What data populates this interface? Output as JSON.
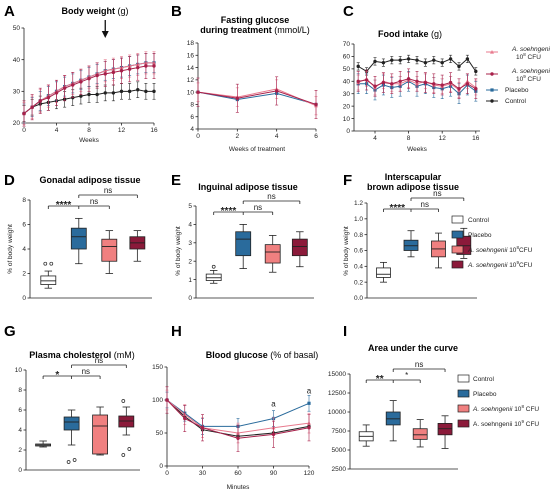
{
  "colors": {
    "control": "#222222",
    "placebo": "#2a6b9c",
    "s8": "#f08080",
    "s9": "#8b1a3a",
    "s8_line": "#e87a8e",
    "s9_line": "#a8204a"
  },
  "chart_data": [
    {
      "panel": "A",
      "type": "line",
      "title": "Body weight",
      "unit": "(g)",
      "xlabel": "Weeks",
      "ylim": [
        20,
        50
      ],
      "yticks": [
        20,
        30,
        40,
        50
      ],
      "xticks": [
        0,
        4,
        8,
        12,
        16
      ],
      "annotation": "arrow at week 10",
      "x": [
        0,
        1,
        2,
        3,
        4,
        5,
        6,
        7,
        8,
        9,
        10,
        11,
        12,
        13,
        14,
        15,
        16
      ],
      "series": [
        {
          "key": "control",
          "values": [
            23,
            25,
            26,
            26.5,
            27,
            27.5,
            28,
            28.5,
            29,
            29,
            29.5,
            29.5,
            30,
            30,
            30.5,
            30,
            30
          ]
        },
        {
          "key": "placebo",
          "values": [
            23,
            25,
            27,
            28.5,
            30,
            31.5,
            32.5,
            33.5,
            34.5,
            35.5,
            36.5,
            37,
            37.5,
            38,
            38.5,
            39,
            39
          ]
        },
        {
          "key": "s8",
          "values": [
            23,
            25,
            27,
            28.5,
            30,
            31.5,
            32.5,
            33.5,
            34.5,
            35.5,
            36.5,
            37,
            37.5,
            38,
            38.5,
            39,
            39
          ]
        },
        {
          "key": "s9",
          "values": [
            23,
            25,
            27,
            28,
            29.5,
            31,
            32,
            33,
            34,
            35,
            35.5,
            36,
            36.5,
            37,
            37.5,
            38,
            38
          ]
        }
      ]
    },
    {
      "panel": "B",
      "type": "line",
      "title": "Fasting glucose during treatment",
      "unit": "(mmol/L)",
      "xlabel": "Weeks of treatment",
      "ylim": [
        4,
        18
      ],
      "yticks": [
        4,
        6,
        8,
        10,
        12,
        14,
        16,
        18
      ],
      "xticks": [
        0,
        2,
        4,
        6
      ],
      "x": [
        0,
        2,
        4,
        6
      ],
      "series": [
        {
          "key": "placebo",
          "values": [
            10,
            8.8,
            9.8,
            8
          ]
        },
        {
          "key": "s8",
          "values": [
            10,
            9.2,
            10.5,
            7.8
          ]
        },
        {
          "key": "s9",
          "values": [
            10,
            9,
            10.2,
            8
          ]
        }
      ]
    },
    {
      "panel": "C",
      "type": "line",
      "title": "Food intake",
      "unit": "(g)",
      "xlabel": "Weeks",
      "ylim": [
        0,
        70
      ],
      "yticks": [
        0,
        10,
        20,
        30,
        40,
        50,
        60,
        70
      ],
      "xticks": [
        4,
        8,
        12,
        16
      ],
      "x": [
        2,
        3,
        4,
        5,
        6,
        7,
        8,
        9,
        10,
        11,
        12,
        13,
        14,
        15,
        16
      ],
      "series": [
        {
          "key": "control",
          "values": [
            52,
            48,
            56,
            55,
            57,
            57,
            58,
            57,
            55,
            57,
            55,
            58,
            52,
            58,
            48
          ]
        },
        {
          "key": "placebo",
          "values": [
            38,
            38,
            33,
            37,
            35,
            36,
            40,
            36,
            38,
            35,
            34,
            36,
            30,
            37,
            32
          ]
        },
        {
          "key": "s8",
          "values": [
            39,
            42,
            35,
            40,
            38,
            38,
            41,
            38,
            40,
            37,
            36,
            38,
            33,
            40,
            35
          ]
        },
        {
          "key": "s9",
          "values": [
            40,
            41,
            36,
            39,
            38,
            40,
            42,
            40,
            39,
            38,
            37,
            39,
            34,
            38,
            34
          ]
        }
      ]
    },
    {
      "panel": "D",
      "type": "box",
      "title": "Gonadal adipose tissue",
      "ylabel": "% of body weight",
      "ylim": [
        0,
        8
      ],
      "yticks": [
        0,
        2,
        4,
        6,
        8
      ],
      "boxes": [
        {
          "key": "control",
          "min": 0.8,
          "q1": 1.1,
          "med": 1.4,
          "q3": 1.8,
          "max": 2.2,
          "outliers": [
            2.8,
            2.8
          ]
        },
        {
          "key": "placebo",
          "min": 2.8,
          "q1": 4.0,
          "med": 5.0,
          "q3": 5.7,
          "max": 6.5
        },
        {
          "key": "s8",
          "min": 2.0,
          "q1": 3.0,
          "med": 4.2,
          "q3": 4.8,
          "max": 5.5
        },
        {
          "key": "s9",
          "min": 3.0,
          "q1": 4.0,
          "med": 4.5,
          "q3": 5.0,
          "max": 5.5
        }
      ],
      "sig": [
        "****",
        "ns",
        "ns"
      ]
    },
    {
      "panel": "E",
      "type": "box",
      "title": "Inguinal adipose tissue",
      "ylabel": "% of body weight",
      "ylim": [
        0,
        5
      ],
      "yticks": [
        0,
        1,
        2,
        3,
        4,
        5
      ],
      "boxes": [
        {
          "key": "control",
          "min": 0.8,
          "q1": 0.95,
          "med": 1.1,
          "q3": 1.3,
          "max": 1.5,
          "outliers": [
            1.7
          ]
        },
        {
          "key": "placebo",
          "min": 1.6,
          "q1": 2.3,
          "med": 3.2,
          "q3": 3.6,
          "max": 4.0
        },
        {
          "key": "s8",
          "min": 1.4,
          "q1": 1.9,
          "med": 2.5,
          "q3": 2.9,
          "max": 3.4
        },
        {
          "key": "s9",
          "min": 1.7,
          "q1": 2.3,
          "med": 2.8,
          "q3": 3.2,
          "max": 3.6
        }
      ],
      "sig": [
        "****",
        "ns",
        "ns"
      ]
    },
    {
      "panel": "F",
      "type": "box",
      "title": "Interscapular brown adipose tissue",
      "ylabel": "% of body weight",
      "ylim": [
        0,
        1.2
      ],
      "yticks": [
        "0.0",
        "0.2",
        "0.4",
        "0.6",
        "0.8",
        "1.0",
        "1.2"
      ],
      "boxes": [
        {
          "key": "control",
          "min": 0.2,
          "q1": 0.26,
          "med": 0.3,
          "q3": 0.38,
          "max": 0.45
        },
        {
          "key": "placebo",
          "min": 0.52,
          "q1": 0.6,
          "med": 0.66,
          "q3": 0.73,
          "max": 0.85
        },
        {
          "key": "s8",
          "min": 0.38,
          "q1": 0.52,
          "med": 0.62,
          "q3": 0.72,
          "max": 0.82
        },
        {
          "key": "s9",
          "min": 0.5,
          "q1": 0.55,
          "med": 0.66,
          "q3": 0.78,
          "max": 0.88
        }
      ],
      "sig": [
        "****",
        "ns",
        "ns"
      ]
    },
    {
      "panel": "G",
      "type": "box",
      "title": "Plasma cholesterol",
      "unit": "(mM)",
      "ylabel": "",
      "ylim": [
        0,
        10
      ],
      "yticks": [
        0,
        2,
        4,
        6,
        8,
        10
      ],
      "boxes": [
        {
          "key": "control",
          "min": 2.3,
          "q1": 2.4,
          "med": 2.5,
          "q3": 2.6,
          "max": 2.9
        },
        {
          "key": "placebo",
          "min": 2.5,
          "q1": 4.0,
          "med": 4.8,
          "q3": 5.3,
          "max": 6.0,
          "outliers": [
            0.8,
            1.0
          ]
        },
        {
          "key": "s8",
          "min": 1.5,
          "q1": 1.6,
          "med": 4.4,
          "q3": 5.5,
          "max": 6.3
        },
        {
          "key": "s9",
          "min": 3.5,
          "q1": 4.3,
          "med": 4.9,
          "q3": 5.4,
          "max": 6.3,
          "outliers": [
            6.9,
            2.1,
            1.5
          ]
        }
      ],
      "sig": [
        "*",
        "ns",
        "ns"
      ]
    },
    {
      "panel": "H",
      "type": "line",
      "title": "Blood glucose",
      "unit": "(% of basal)",
      "xlabel": "Minutes",
      "ylim": [
        0,
        150
      ],
      "yticks": [
        0,
        50,
        100,
        150
      ],
      "xticks": [
        0,
        30,
        60,
        90,
        120
      ],
      "x": [
        0,
        15,
        30,
        60,
        90,
        120
      ],
      "series": [
        {
          "key": "control",
          "values": [
            100,
            75,
            55,
            45,
            50,
            60
          ]
        },
        {
          "key": "placebo",
          "values": [
            100,
            80,
            60,
            60,
            72,
            95
          ]
        },
        {
          "key": "s8",
          "values": [
            100,
            78,
            58,
            50,
            58,
            65
          ]
        },
        {
          "key": "s9",
          "values": [
            100,
            72,
            58,
            42,
            48,
            58
          ]
        }
      ],
      "annotations": [
        "a",
        "a"
      ]
    },
    {
      "panel": "I",
      "type": "box",
      "title": "Area under the curve",
      "ylabel": "",
      "ylim": [
        2500,
        15000
      ],
      "yticks": [
        2500,
        5000,
        7500,
        10000,
        12500,
        15000
      ],
      "boxes": [
        {
          "key": "control",
          "min": 5500,
          "q1": 6200,
          "med": 6800,
          "q3": 7400,
          "max": 8300
        },
        {
          "key": "placebo",
          "min": 6200,
          "q1": 8300,
          "med": 9100,
          "q3": 10000,
          "max": 11500
        },
        {
          "key": "s8",
          "min": 5400,
          "q1": 6400,
          "med": 7000,
          "q3": 7800,
          "max": 9000
        },
        {
          "key": "s9",
          "min": 5200,
          "q1": 7000,
          "med": 7800,
          "q3": 8500,
          "max": 9500
        }
      ],
      "sig": [
        "**",
        "*",
        "ns"
      ]
    }
  ],
  "legend_top": [
    {
      "key": "s8",
      "label_a": "A. soehngenii",
      "label_b": "10",
      "sup": "8",
      "label_c": " CFU"
    },
    {
      "key": "s9",
      "label_a": "A. soehngenii",
      "label_b": "10",
      "sup": "9",
      "label_c": " CFU"
    },
    {
      "key": "placebo",
      "label_a": "Placebo"
    },
    {
      "key": "control",
      "label_a": "Control"
    }
  ],
  "legend_box": [
    {
      "key": "control",
      "text": "Control"
    },
    {
      "key": "placebo",
      "text": "Placebo"
    },
    {
      "key": "s8",
      "text_it": "A. soehngenii",
      "text": " 10",
      "sup": "8",
      "text2": "CFU"
    },
    {
      "key": "s9",
      "text_it": "A. soehngenii",
      "text": " 10",
      "sup": "9",
      "text2": "CFU"
    }
  ],
  "legend_I": [
    {
      "key": "control",
      "text": "Control"
    },
    {
      "key": "placebo",
      "text": "Placebo"
    },
    {
      "key": "s8",
      "text_it": "A. soehngenii",
      "text": " 10",
      "sup": "8",
      "text2": " CFU"
    },
    {
      "key": "s9",
      "text": "A. soehngenii 10",
      "sup": "9",
      "text2": " CFU"
    }
  ]
}
